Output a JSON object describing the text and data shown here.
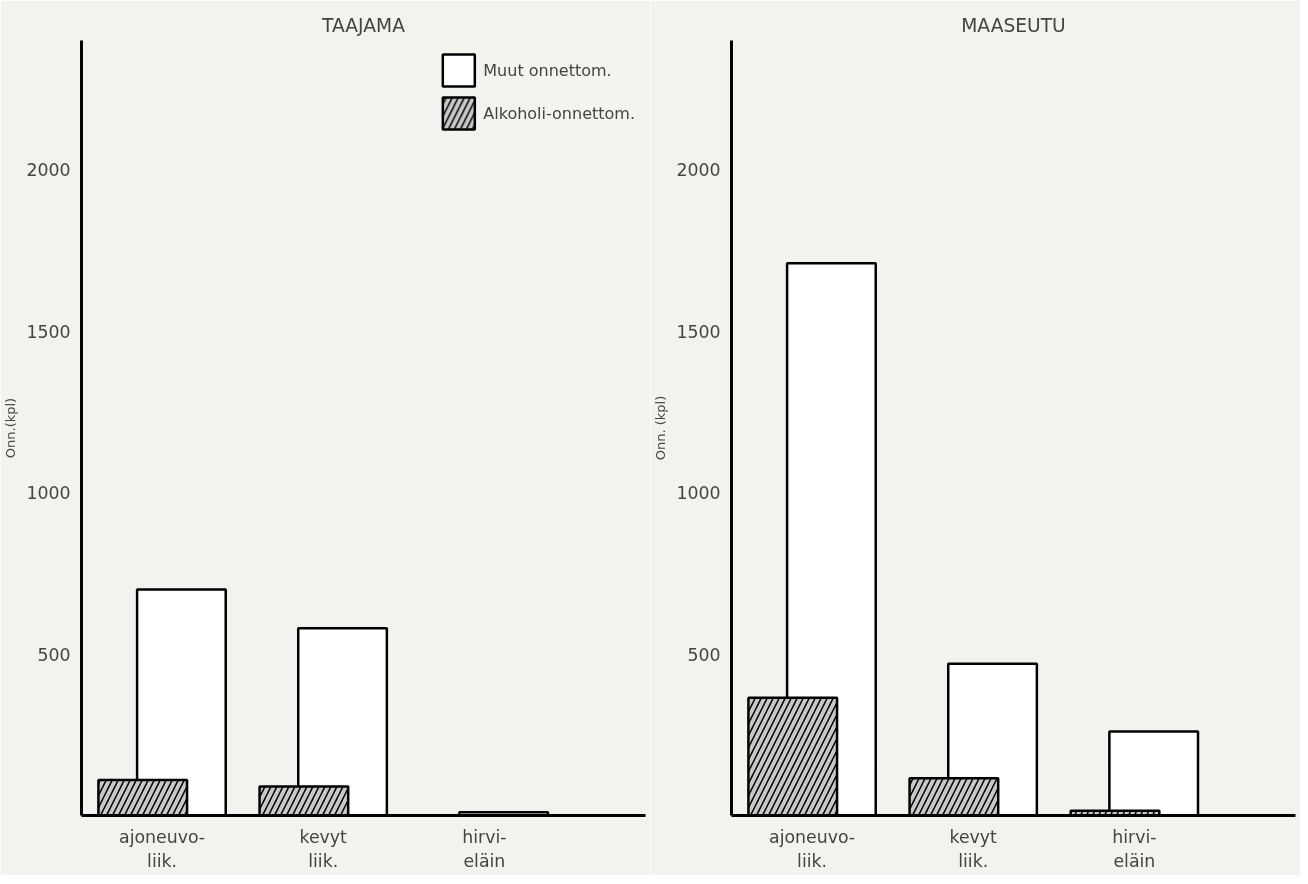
{
  "chart_data": [
    {
      "type": "bar",
      "title": "TAAJAMA",
      "ylabel": "Onn.(kpl)",
      "categories": [
        "ajoneuvo-\nliik.",
        "kevyt\nliik.",
        "hirvi-\neläin"
      ],
      "series": [
        {
          "name": "Muut onnettom.",
          "color": "#ffffff",
          "values": [
            700,
            580,
            10
          ]
        },
        {
          "name": "Alkoholi-onnettom.",
          "color": "#c8c8c8",
          "values": [
            110,
            90,
            null
          ]
        }
      ],
      "ylim": [
        0,
        2400
      ],
      "yticks": [
        500,
        1000,
        1500,
        2000
      ],
      "grid": false,
      "legend": "top right"
    },
    {
      "type": "bar",
      "title": "MAASEUTU",
      "ylabel": "Onn. (kpl)",
      "categories": [
        "ajoneuvo-\nliik.",
        "kevyt\nliik.",
        "hirvi-\neläin"
      ],
      "series": [
        {
          "color": "#ffffff",
          "values": [
            1710,
            470,
            260
          ]
        },
        {
          "color": "#c8c8c8",
          "values": [
            365,
            115,
            15
          ]
        }
      ],
      "ylim": [
        0,
        2400
      ],
      "yticks": [
        500,
        1000,
        1500,
        2000
      ],
      "grid": false
    }
  ]
}
